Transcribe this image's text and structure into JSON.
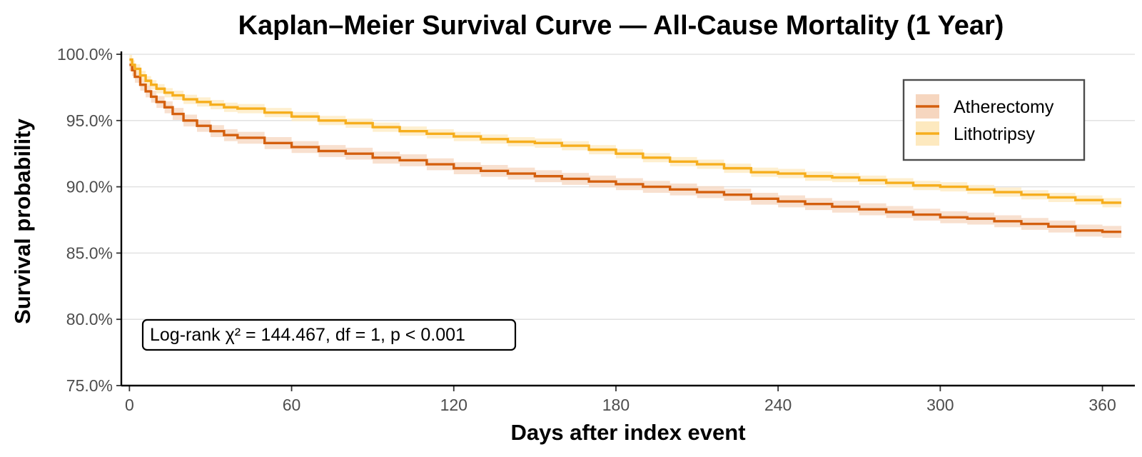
{
  "chart_data": {
    "type": "line",
    "title": "Kaplan–Meier Survival Curve — All-Cause Mortality (1 Year)",
    "xlabel": "Days after index event",
    "ylabel": "Survival probability",
    "xlim": [
      -3,
      372
    ],
    "ylim": [
      75,
      100
    ],
    "x_ticks": [
      0,
      60,
      120,
      180,
      240,
      300,
      360
    ],
    "x_tick_labels": [
      "0",
      "60",
      "120",
      "180",
      "240",
      "300",
      "360"
    ],
    "y_ticks": [
      75,
      80,
      85,
      90,
      95,
      100
    ],
    "y_tick_labels": [
      "75.0%",
      "80.0%",
      "85.0%",
      "90.0%",
      "95.0%",
      "100.0%"
    ],
    "grid": "horizontal",
    "legend_position": "top-right",
    "series": [
      {
        "name": "Atherectomy",
        "color": "#d45f0e",
        "band_color": "#f6d6bf",
        "x": [
          0,
          1,
          2,
          4,
          6,
          8,
          10,
          13,
          16,
          20,
          25,
          30,
          35,
          40,
          50,
          60,
          70,
          80,
          90,
          100,
          110,
          120,
          130,
          140,
          150,
          160,
          170,
          180,
          190,
          200,
          210,
          220,
          230,
          240,
          250,
          260,
          270,
          280,
          290,
          300,
          310,
          320,
          330,
          340,
          350,
          360,
          367
        ],
        "y": [
          99.2,
          98.8,
          98.3,
          97.7,
          97.2,
          96.8,
          96.4,
          96.0,
          95.5,
          95.0,
          94.6,
          94.2,
          93.9,
          93.7,
          93.3,
          93.0,
          92.7,
          92.5,
          92.2,
          92.0,
          91.7,
          91.4,
          91.2,
          91.0,
          90.8,
          90.6,
          90.4,
          90.2,
          90.0,
          89.8,
          89.6,
          89.4,
          89.1,
          88.9,
          88.7,
          88.5,
          88.3,
          88.1,
          87.9,
          87.7,
          87.6,
          87.4,
          87.2,
          87.0,
          86.7,
          86.6,
          86.6
        ],
        "band_halfwidth": 0.45
      },
      {
        "name": "Lithotripsy",
        "color": "#f6ae1d",
        "band_color": "#fde9bf",
        "x": [
          0,
          1,
          2,
          4,
          6,
          8,
          10,
          13,
          16,
          20,
          25,
          30,
          35,
          40,
          50,
          60,
          70,
          80,
          90,
          100,
          110,
          120,
          130,
          140,
          150,
          160,
          170,
          180,
          190,
          200,
          210,
          220,
          230,
          240,
          250,
          260,
          270,
          280,
          290,
          300,
          310,
          320,
          330,
          340,
          350,
          360,
          367
        ],
        "y": [
          99.6,
          99.2,
          98.9,
          98.4,
          98.0,
          97.7,
          97.4,
          97.1,
          96.9,
          96.6,
          96.4,
          96.2,
          96.0,
          95.9,
          95.6,
          95.3,
          95.0,
          94.8,
          94.5,
          94.2,
          94.0,
          93.8,
          93.6,
          93.4,
          93.3,
          93.1,
          92.8,
          92.5,
          92.2,
          91.9,
          91.7,
          91.4,
          91.1,
          91.0,
          90.8,
          90.7,
          90.5,
          90.3,
          90.1,
          90.0,
          89.8,
          89.6,
          89.4,
          89.2,
          89.0,
          88.8,
          88.8
        ],
        "band_halfwidth": 0.35
      }
    ],
    "annotation": "Log-rank χ² = 144.467, df = 1, p < 0.001"
  }
}
